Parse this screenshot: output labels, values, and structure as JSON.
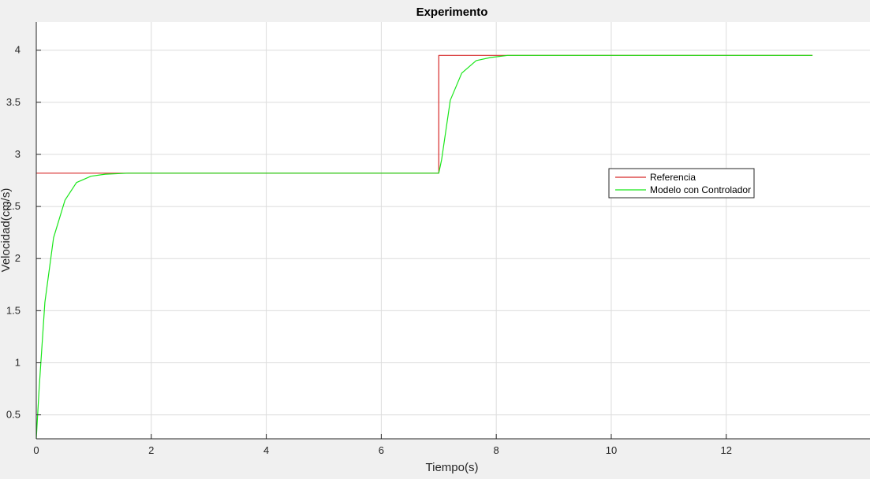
{
  "chart_data": {
    "type": "line",
    "title": "Experimento",
    "xlabel": "Tiempo(s)",
    "ylabel": "Velocidad(cm/s)",
    "xlim": [
      0,
      14.5
    ],
    "ylim": [
      0.27,
      4.27
    ],
    "xticks": [
      0,
      2,
      4,
      6,
      8,
      10,
      12
    ],
    "yticks": [
      0.5,
      1,
      1.5,
      2,
      2.5,
      3,
      3.5,
      4
    ],
    "grid": true,
    "legend_position": "right-center",
    "series": [
      {
        "name": "Referencia",
        "color": "#d62a2a",
        "x": [
          0,
          7.0,
          7.0,
          13.5
        ],
        "y": [
          2.82,
          2.82,
          3.95,
          3.95
        ]
      },
      {
        "name": "Modelo con Controlador",
        "color": "#19e619",
        "x": [
          0.0,
          0.05,
          0.15,
          0.3,
          0.5,
          0.7,
          0.95,
          1.2,
          1.6,
          2.0,
          7.0,
          7.05,
          7.2,
          7.4,
          7.65,
          7.9,
          8.2,
          8.6,
          9.0,
          13.5
        ],
        "y": [
          0.27,
          0.75,
          1.58,
          2.2,
          2.56,
          2.73,
          2.79,
          2.81,
          2.82,
          2.82,
          2.82,
          2.95,
          3.52,
          3.78,
          3.9,
          3.93,
          3.95,
          3.95,
          3.95,
          3.95
        ]
      }
    ]
  }
}
